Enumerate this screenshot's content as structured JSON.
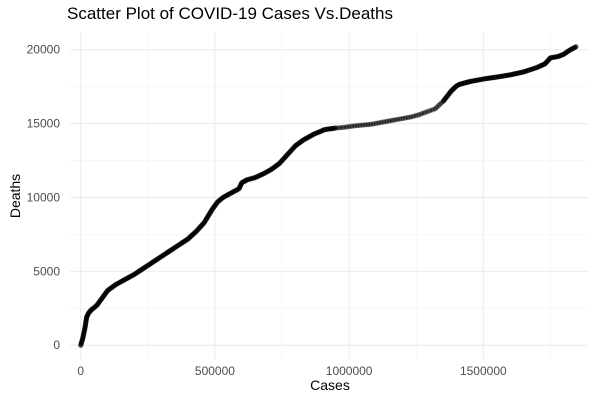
{
  "chart_data": {
    "type": "scatter",
    "title": "Scatter Plot of COVID-19 Cases Vs.Deaths",
    "xlabel": "Cases",
    "ylabel": "Deaths",
    "xlim": [
      -40000,
      1890000
    ],
    "ylim": [
      -1000,
      21200
    ],
    "xticks": [
      0,
      500000,
      1000000,
      1500000
    ],
    "xtick_labels": [
      "0",
      "500000",
      "1000000",
      "1500000"
    ],
    "yticks": [
      0,
      5000,
      10000,
      15000,
      20000
    ],
    "ytick_labels": [
      "0",
      "5000",
      "10000",
      "15000",
      "20000"
    ],
    "grid": true,
    "legend": "none",
    "point_color": "#000000",
    "point_alpha": 0.6,
    "series": [
      {
        "x": [
          0,
          8000,
          16000,
          22000,
          30000,
          40000,
          60000,
          80000,
          100000,
          130000,
          160000,
          200000,
          250000,
          300000,
          350000,
          400000,
          430000,
          460000,
          490000,
          510000,
          530000,
          560000,
          590000,
          600000,
          610000,
          620000,
          650000,
          680000,
          710000,
          740000,
          770000,
          800000,
          830000,
          870000,
          910000,
          950000,
          980000,
          1000000,
          1020000,
          1050000,
          1080000,
          1110000,
          1140000,
          1170000,
          1200000,
          1230000,
          1260000,
          1290000,
          1320000,
          1350000,
          1380000,
          1400000,
          1410000,
          1420000,
          1430000,
          1440000,
          1450000,
          1480000,
          1510000,
          1550000,
          1600000,
          1650000,
          1700000,
          1730000,
          1745000,
          1750000,
          1780000,
          1800000,
          1820000,
          1845000
        ],
        "y": [
          0,
          500,
          1200,
          1900,
          2200,
          2400,
          2700,
          3200,
          3700,
          4100,
          4400,
          4800,
          5400,
          6000,
          6600,
          7200,
          7700,
          8300,
          9200,
          9700,
          10000,
          10300,
          10600,
          11000,
          11100,
          11200,
          11350,
          11600,
          11900,
          12300,
          12900,
          13500,
          13900,
          14300,
          14600,
          14700,
          14750,
          14800,
          14850,
          14900,
          14950,
          15050,
          15150,
          15250,
          15350,
          15450,
          15600,
          15800,
          16000,
          16500,
          17200,
          17550,
          17650,
          17700,
          17750,
          17800,
          17850,
          17950,
          18050,
          18150,
          18300,
          18500,
          18800,
          19050,
          19350,
          19450,
          19550,
          19700,
          19950,
          20200
        ]
      }
    ]
  }
}
